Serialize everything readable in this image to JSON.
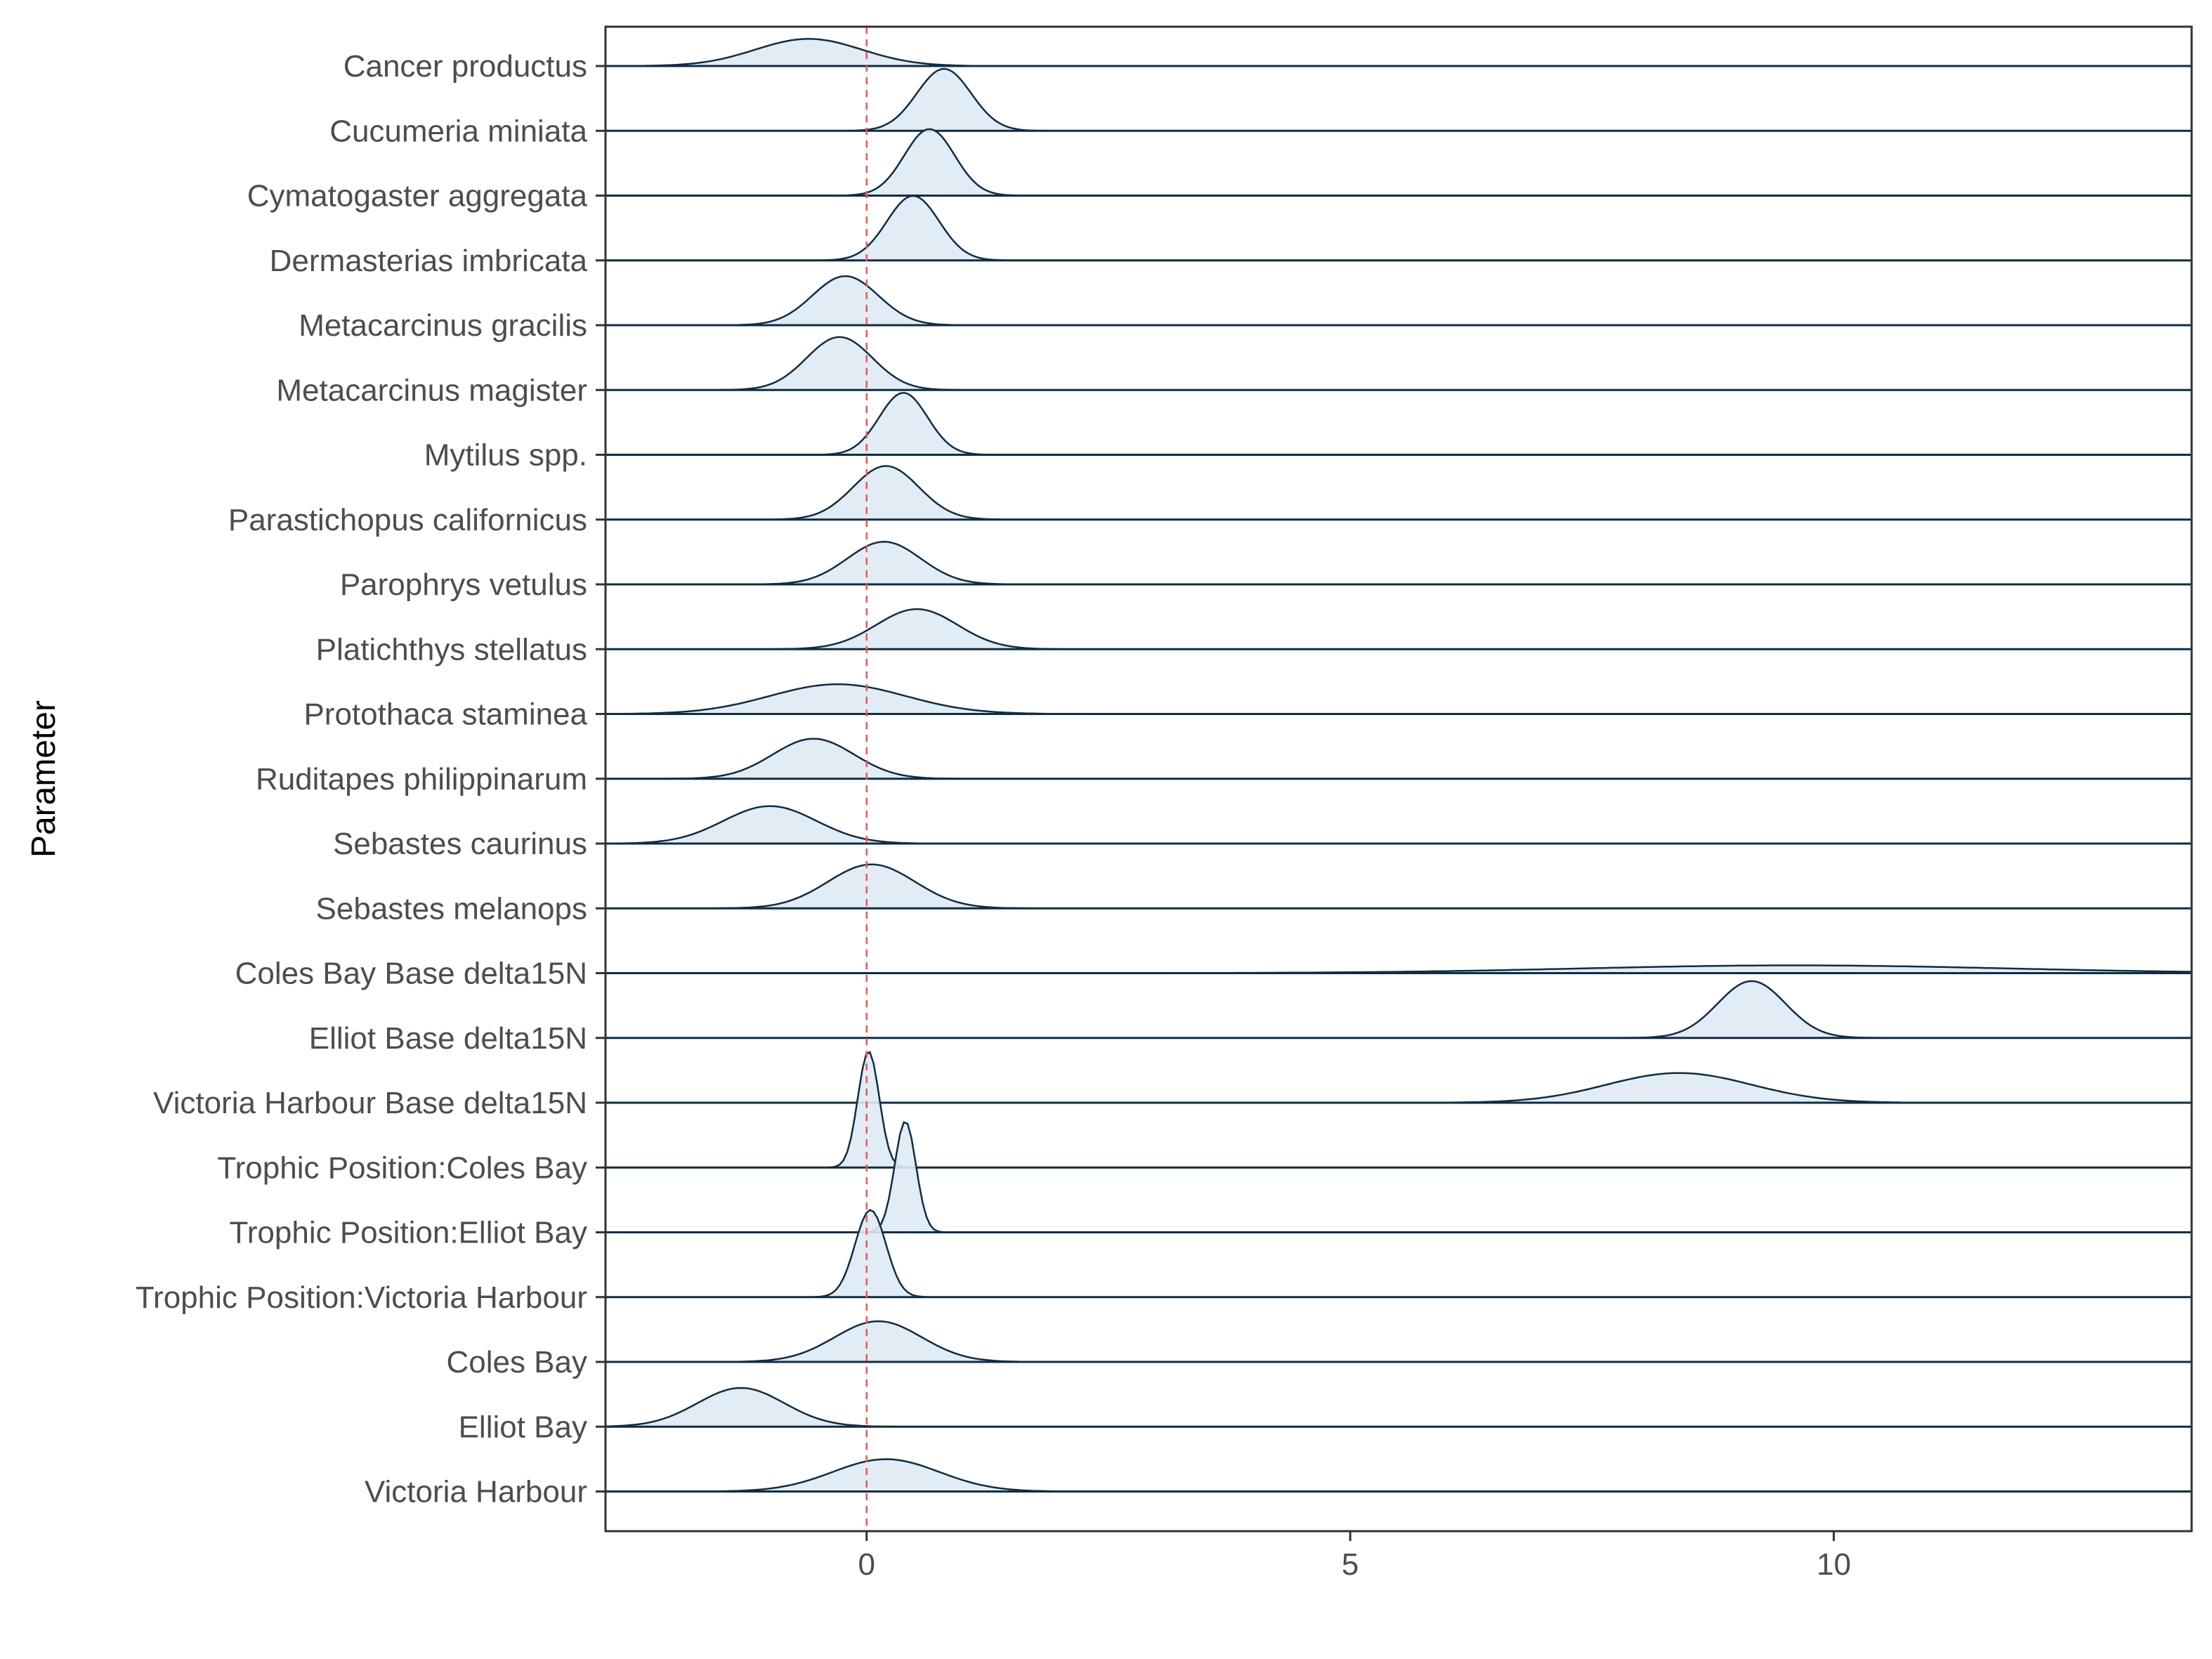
{
  "chart_data": {
    "type": "ridgeline",
    "title": "",
    "xlabel": "",
    "ylabel": "Parameter",
    "xlim": [
      -2.7,
      13.7
    ],
    "x_ticks": [
      0,
      5,
      10
    ],
    "reference_line": {
      "x": 0,
      "style": "dashed",
      "color": "#e8575a"
    },
    "grid": false,
    "legend": "none",
    "colors": {
      "fill": "#deeaf4",
      "line": "#0e2d45",
      "axis": "#333333"
    },
    "series": [
      {
        "name": "Cancer productus",
        "mean": -0.6,
        "sd": 0.55,
        "height": 0.42
      },
      {
        "name": "Cucumeria miniata",
        "mean": 0.8,
        "sd": 0.28,
        "height": 0.96
      },
      {
        "name": "Cymatogaster aggregata",
        "mean": 0.65,
        "sd": 0.26,
        "height": 1.03
      },
      {
        "name": "Dermasterias imbricata",
        "mean": 0.48,
        "sd": 0.27,
        "height": 1.0
      },
      {
        "name": "Metacarcinus gracilis",
        "mean": -0.22,
        "sd": 0.34,
        "height": 0.76
      },
      {
        "name": "Metacarcinus magister",
        "mean": -0.28,
        "sd": 0.34,
        "height": 0.82
      },
      {
        "name": "Mytilus spp.",
        "mean": 0.38,
        "sd": 0.25,
        "height": 0.96
      },
      {
        "name": "Parastichopus californicus",
        "mean": 0.2,
        "sd": 0.34,
        "height": 0.83
      },
      {
        "name": "Parophrys vetulus",
        "mean": 0.18,
        "sd": 0.38,
        "height": 0.66
      },
      {
        "name": "Platichthys stellatus",
        "mean": 0.52,
        "sd": 0.42,
        "height": 0.62
      },
      {
        "name": "Protothaca staminea",
        "mean": -0.3,
        "sd": 0.7,
        "height": 0.46
      },
      {
        "name": "Ruditapes philippinarum",
        "mean": -0.55,
        "sd": 0.42,
        "height": 0.62
      },
      {
        "name": "Sebastes caurinus",
        "mean": -1.0,
        "sd": 0.48,
        "height": 0.58
      },
      {
        "name": "Sebastes melanops",
        "mean": 0.05,
        "sd": 0.45,
        "height": 0.68
      },
      {
        "name": "Coles Bay Base delta15N",
        "mean": 9.6,
        "sd": 2.2,
        "height": 0.12
      },
      {
        "name": "Elliot Base delta15N",
        "mean": 9.15,
        "sd": 0.35,
        "height": 0.88
      },
      {
        "name": "Victoria Harbour Base delta15N",
        "mean": 8.4,
        "sd": 0.75,
        "height": 0.46
      },
      {
        "name": "Trophic Position:Coles Bay",
        "mean": 0.02,
        "sd": 0.11,
        "height": 1.8
      },
      {
        "name": "Trophic Position:Elliot Bay",
        "mean": 0.4,
        "sd": 0.11,
        "height": 1.72
      },
      {
        "name": "Trophic Position:Victoria Harbour",
        "mean": 0.04,
        "sd": 0.16,
        "height": 1.35
      },
      {
        "name": "Coles Bay",
        "mean": 0.12,
        "sd": 0.45,
        "height": 0.63
      },
      {
        "name": "Elliot Bay",
        "mean": -1.3,
        "sd": 0.45,
        "height": 0.6
      },
      {
        "name": "Victoria Harbour",
        "mean": 0.2,
        "sd": 0.55,
        "height": 0.5
      }
    ]
  }
}
